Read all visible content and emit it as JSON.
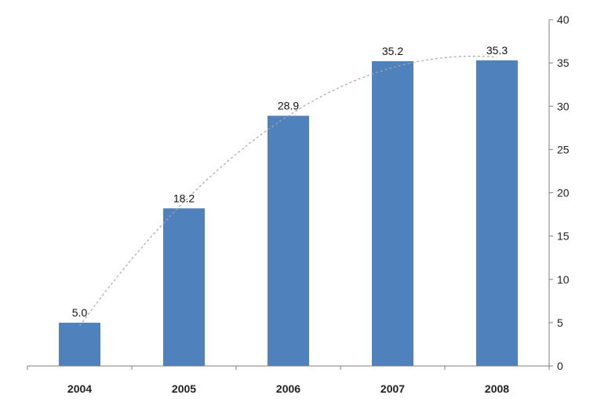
{
  "chart_data": {
    "type": "bar",
    "categories": [
      "2004",
      "2005",
      "2006",
      "2007",
      "2008"
    ],
    "values": [
      5.0,
      18.2,
      28.9,
      35.2,
      35.3
    ],
    "data_labels": [
      "5.0",
      "18.2",
      "28.9",
      "35.2",
      "35.3"
    ],
    "y_ticks": [
      "0",
      "5",
      "10",
      "15",
      "20",
      "25",
      "30",
      "35",
      "40"
    ],
    "ylim": [
      0,
      40
    ],
    "y_axis_side": "right",
    "grid": false,
    "legend": "none",
    "trendline": {
      "style": "dashed",
      "type": "polynomial"
    },
    "colors": {
      "bar": "#4f81bd",
      "axis": "#7f7f7f",
      "trendline": "#a6a6a6"
    }
  }
}
